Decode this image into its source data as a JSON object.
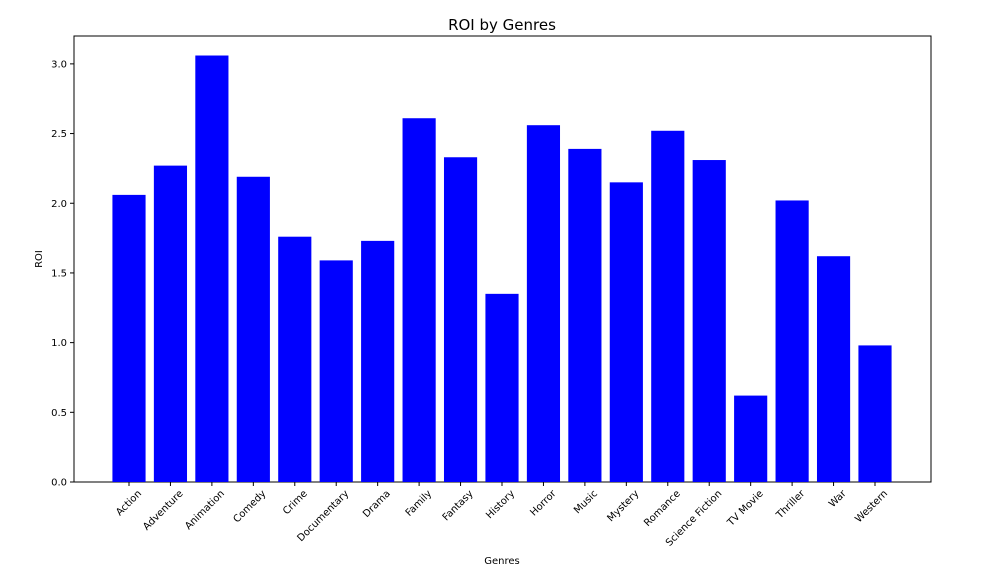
{
  "chart_data": {
    "type": "bar",
    "title": "ROI by Genres",
    "xlabel": "Genres",
    "ylabel": "ROI",
    "categories": [
      "Action",
      "Adventure",
      "Animation",
      "Comedy",
      "Crime",
      "Documentary",
      "Drama",
      "Family",
      "Fantasy",
      "History",
      "Horror",
      "Music",
      "Mystery",
      "Romance",
      "Science Fiction",
      "TV Movie",
      "Thriller",
      "War",
      "Western"
    ],
    "values": [
      2.06,
      2.27,
      3.06,
      2.19,
      1.76,
      1.59,
      1.73,
      2.61,
      2.33,
      1.35,
      2.56,
      2.39,
      2.15,
      2.52,
      2.31,
      0.62,
      2.02,
      1.62,
      0.98
    ],
    "ylim": [
      0,
      3.2
    ],
    "yticks": [
      "0.0",
      "0.5",
      "1.0",
      "1.5",
      "2.0",
      "2.5",
      "3.0"
    ],
    "bar_color": "#0000ff",
    "grid": false,
    "legend": false
  }
}
